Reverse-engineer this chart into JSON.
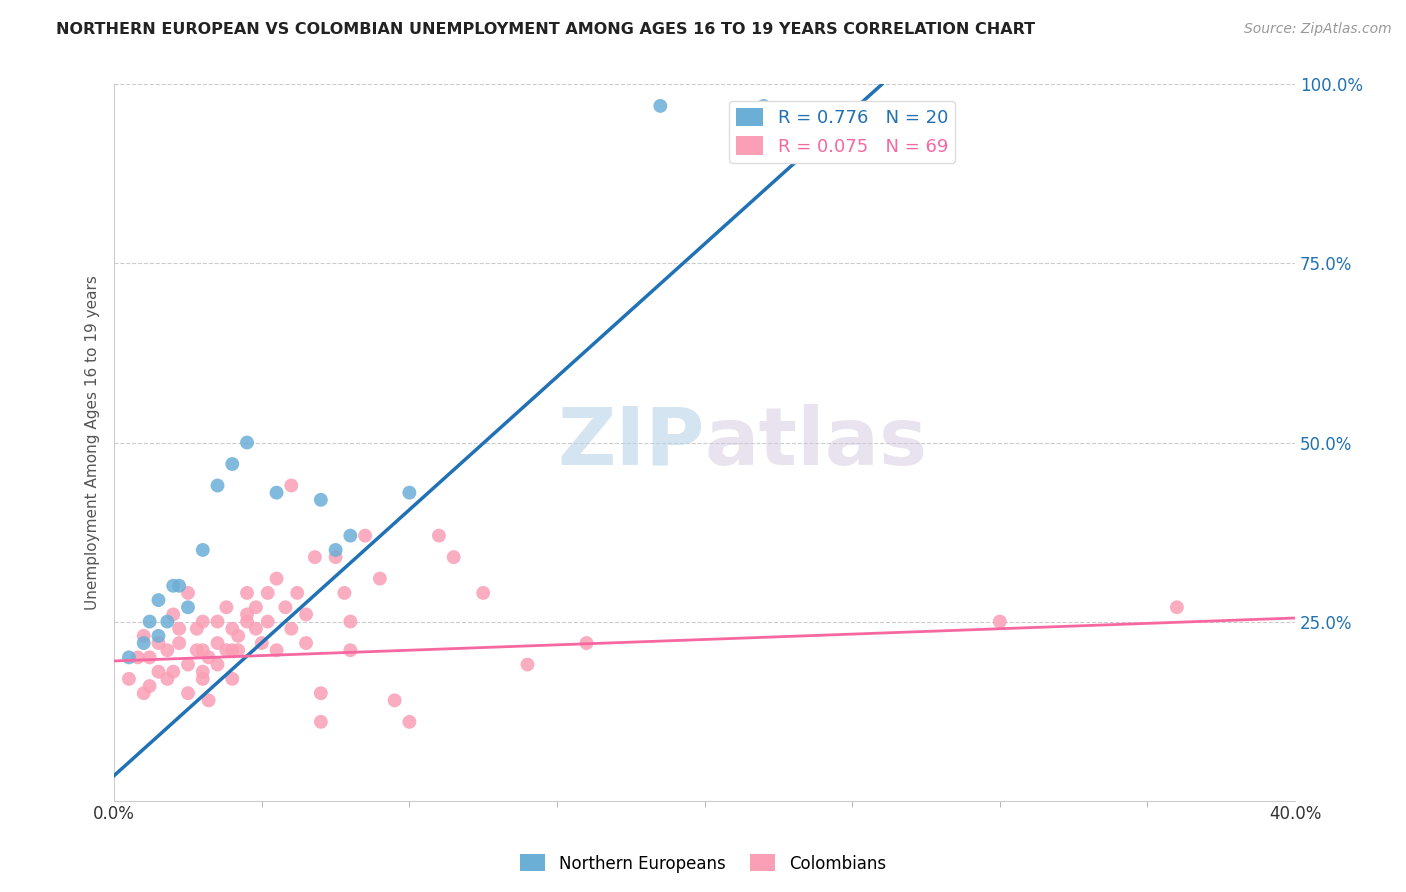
{
  "title": "NORTHERN EUROPEAN VS COLOMBIAN UNEMPLOYMENT AMONG AGES 16 TO 19 YEARS CORRELATION CHART",
  "source": "Source: ZipAtlas.com",
  "ylabel": "Unemployment Among Ages 16 to 19 years",
  "xlim": [
    0.0,
    0.4
  ],
  "ylim": [
    0.0,
    1.0
  ],
  "xtick_positions": [
    0.0,
    0.4
  ],
  "xtick_labels": [
    "0.0%",
    "40.0%"
  ],
  "ytick_positions": [
    0.25,
    0.5,
    0.75,
    1.0
  ],
  "ytick_labels": [
    "25.0%",
    "50.0%",
    "75.0%",
    "100.0%"
  ],
  "blue_R": 0.776,
  "blue_N": 20,
  "pink_R": 0.075,
  "pink_N": 69,
  "blue_color": "#6baed6",
  "pink_color": "#fa9fb5",
  "blue_line_color": "#2171b5",
  "pink_line_color": "#f768a1",
  "blue_scatter": [
    [
      0.005,
      0.2
    ],
    [
      0.01,
      0.22
    ],
    [
      0.012,
      0.25
    ],
    [
      0.015,
      0.23
    ],
    [
      0.015,
      0.28
    ],
    [
      0.018,
      0.25
    ],
    [
      0.02,
      0.3
    ],
    [
      0.022,
      0.3
    ],
    [
      0.025,
      0.27
    ],
    [
      0.03,
      0.35
    ],
    [
      0.035,
      0.44
    ],
    [
      0.04,
      0.47
    ],
    [
      0.045,
      0.5
    ],
    [
      0.055,
      0.43
    ],
    [
      0.07,
      0.42
    ],
    [
      0.075,
      0.35
    ],
    [
      0.08,
      0.37
    ],
    [
      0.1,
      0.43
    ],
    [
      0.185,
      0.97
    ],
    [
      0.22,
      0.97
    ]
  ],
  "pink_scatter": [
    [
      0.005,
      0.17
    ],
    [
      0.008,
      0.2
    ],
    [
      0.01,
      0.15
    ],
    [
      0.01,
      0.23
    ],
    [
      0.012,
      0.2
    ],
    [
      0.012,
      0.16
    ],
    [
      0.015,
      0.22
    ],
    [
      0.015,
      0.18
    ],
    [
      0.018,
      0.17
    ],
    [
      0.018,
      0.21
    ],
    [
      0.02,
      0.26
    ],
    [
      0.02,
      0.18
    ],
    [
      0.022,
      0.22
    ],
    [
      0.022,
      0.24
    ],
    [
      0.025,
      0.15
    ],
    [
      0.025,
      0.29
    ],
    [
      0.025,
      0.19
    ],
    [
      0.028,
      0.21
    ],
    [
      0.028,
      0.24
    ],
    [
      0.03,
      0.17
    ],
    [
      0.03,
      0.21
    ],
    [
      0.03,
      0.18
    ],
    [
      0.03,
      0.25
    ],
    [
      0.032,
      0.2
    ],
    [
      0.032,
      0.14
    ],
    [
      0.035,
      0.22
    ],
    [
      0.035,
      0.19
    ],
    [
      0.035,
      0.25
    ],
    [
      0.038,
      0.21
    ],
    [
      0.038,
      0.27
    ],
    [
      0.04,
      0.24
    ],
    [
      0.04,
      0.21
    ],
    [
      0.04,
      0.17
    ],
    [
      0.042,
      0.23
    ],
    [
      0.042,
      0.21
    ],
    [
      0.045,
      0.25
    ],
    [
      0.045,
      0.26
    ],
    [
      0.045,
      0.29
    ],
    [
      0.048,
      0.27
    ],
    [
      0.048,
      0.24
    ],
    [
      0.05,
      0.22
    ],
    [
      0.052,
      0.29
    ],
    [
      0.052,
      0.25
    ],
    [
      0.055,
      0.21
    ],
    [
      0.055,
      0.31
    ],
    [
      0.058,
      0.27
    ],
    [
      0.06,
      0.24
    ],
    [
      0.06,
      0.44
    ],
    [
      0.062,
      0.29
    ],
    [
      0.065,
      0.26
    ],
    [
      0.065,
      0.22
    ],
    [
      0.068,
      0.34
    ],
    [
      0.07,
      0.15
    ],
    [
      0.07,
      0.11
    ],
    [
      0.075,
      0.34
    ],
    [
      0.078,
      0.29
    ],
    [
      0.08,
      0.25
    ],
    [
      0.08,
      0.21
    ],
    [
      0.085,
      0.37
    ],
    [
      0.09,
      0.31
    ],
    [
      0.095,
      0.14
    ],
    [
      0.1,
      0.11
    ],
    [
      0.11,
      0.37
    ],
    [
      0.115,
      0.34
    ],
    [
      0.125,
      0.29
    ],
    [
      0.14,
      0.19
    ],
    [
      0.16,
      0.22
    ],
    [
      0.3,
      0.25
    ],
    [
      0.36,
      0.27
    ]
  ],
  "blue_line_x": [
    0.0,
    0.26
  ],
  "blue_line_y": [
    0.035,
    1.0
  ],
  "pink_line_x": [
    0.0,
    0.4
  ],
  "pink_line_y": [
    0.195,
    0.255
  ],
  "legend_label_blue": "Northern Europeans",
  "legend_label_pink": "Colombians"
}
